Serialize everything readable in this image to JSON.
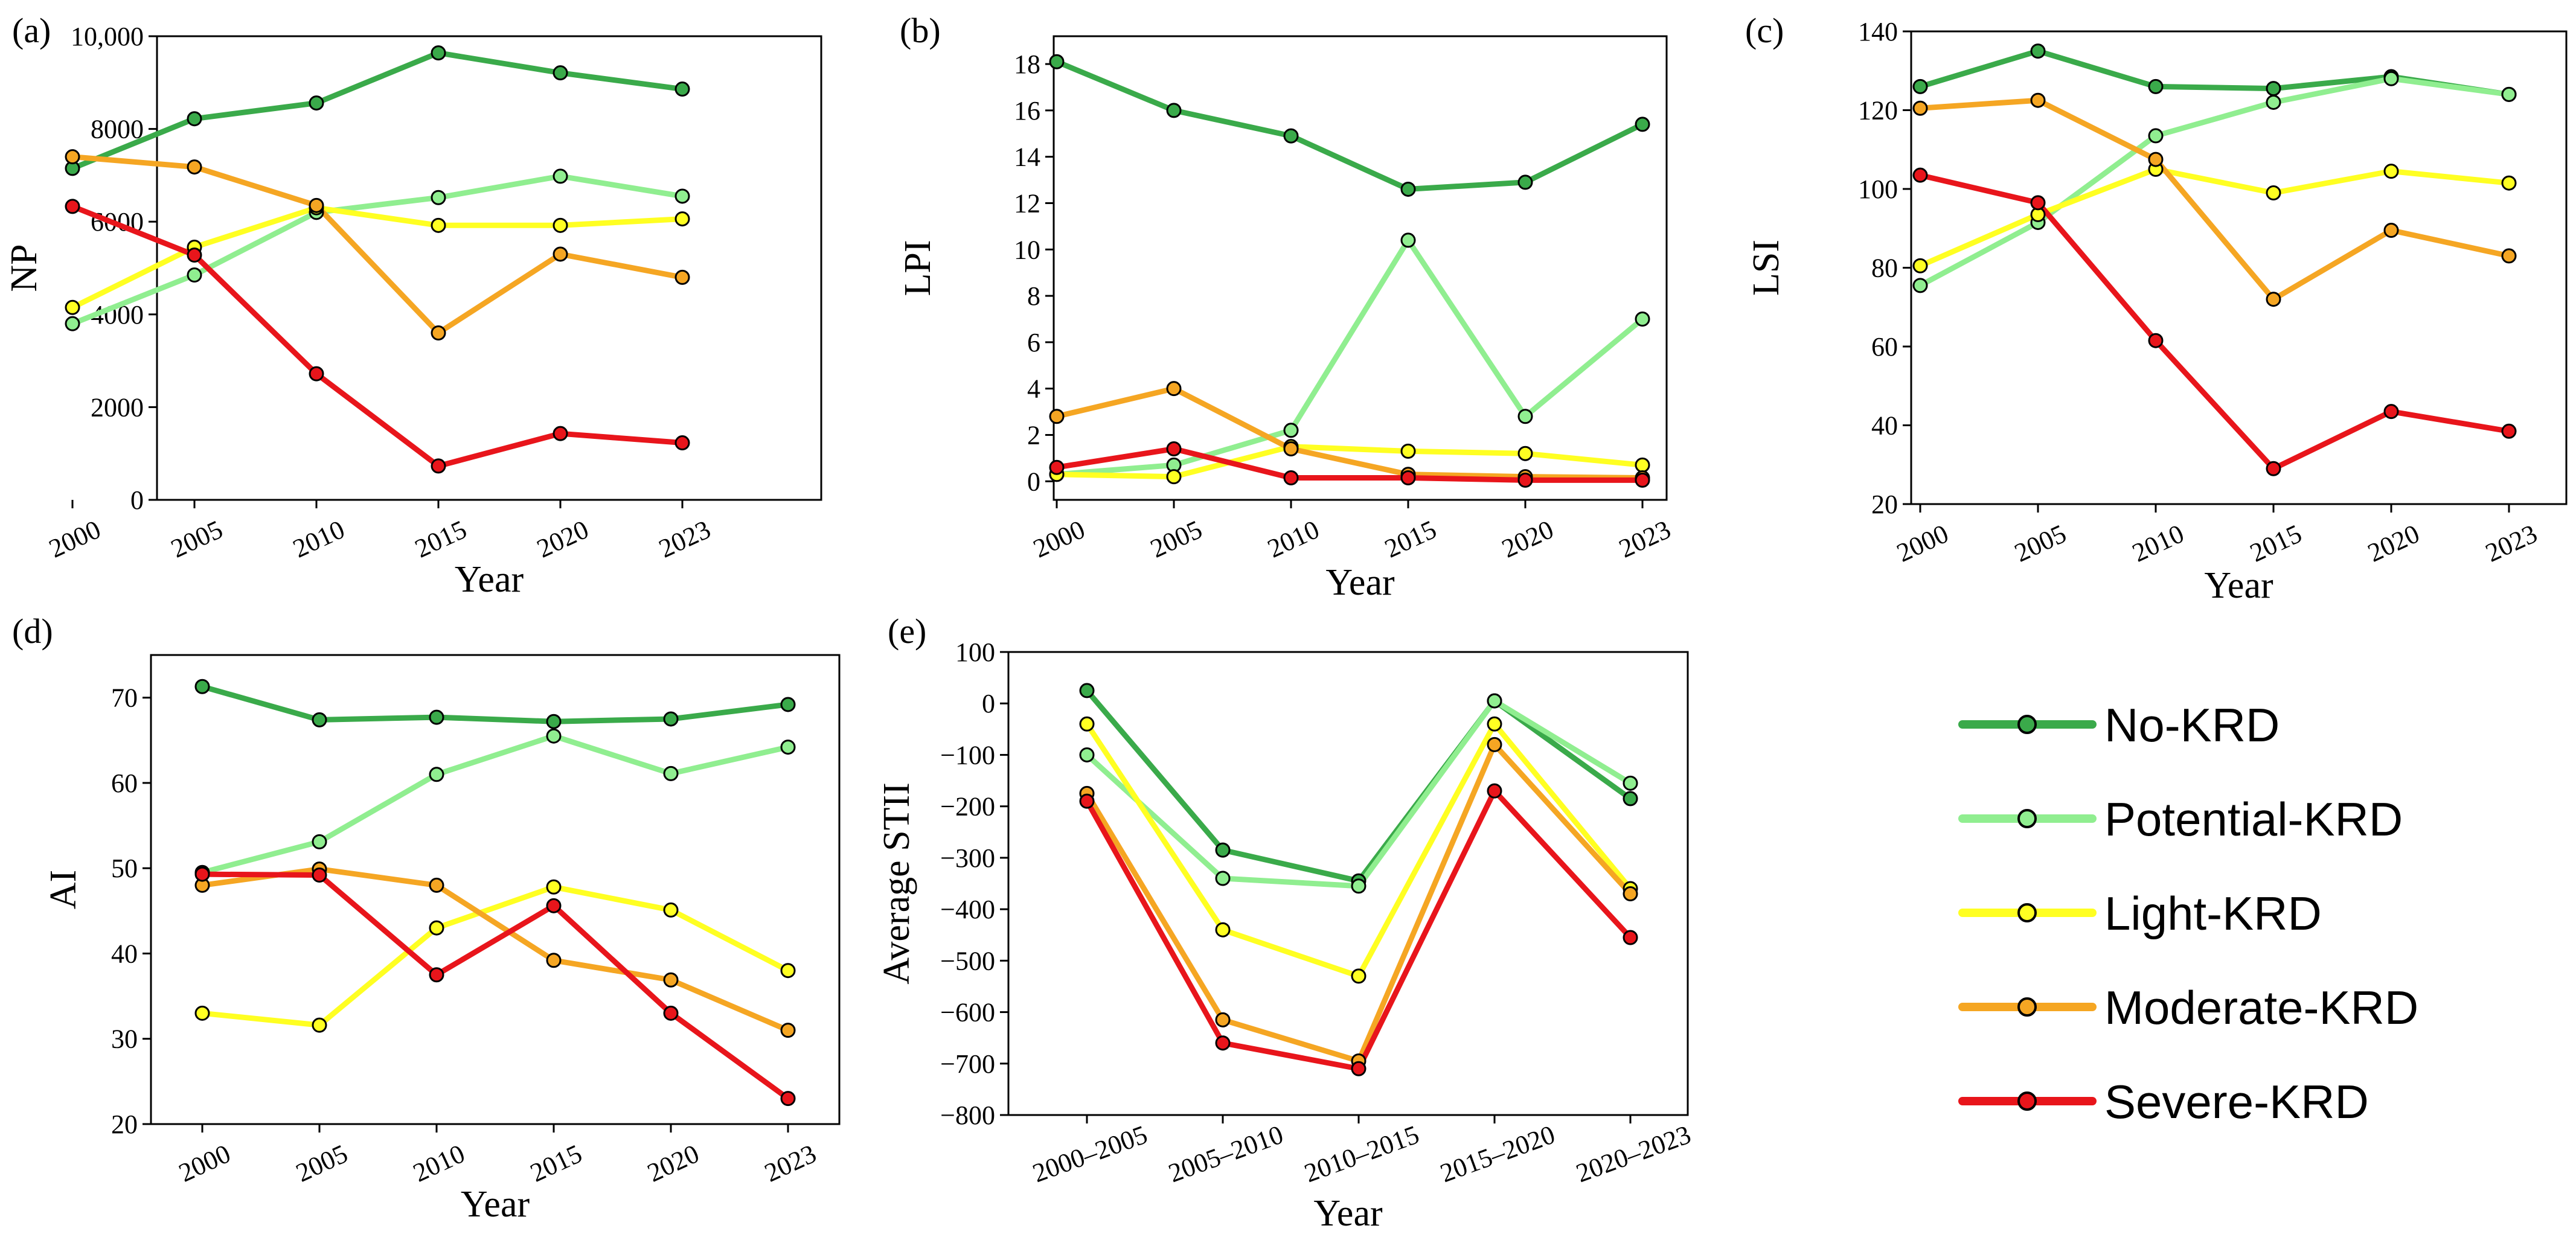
{
  "legend": [
    {
      "key": "no",
      "label": "No-KRD",
      "color": "#3aaa4a"
    },
    {
      "key": "potential",
      "label": "Potential-KRD",
      "color": "#90ee90"
    },
    {
      "key": "light",
      "label": "Light-KRD",
      "color": "#ffff22"
    },
    {
      "key": "moderate",
      "label": "Moderate-KRD",
      "color": "#f5a623"
    },
    {
      "key": "severe",
      "label": "Severe-KRD",
      "color": "#e8151b"
    }
  ],
  "chart_data": [
    {
      "id": "a",
      "panel_label": "(a)",
      "type": "line",
      "x": [
        "2000",
        "2005",
        "2010",
        "2015",
        "2020",
        "2023"
      ],
      "xlabel": "Year",
      "ylabel": "NP",
      "ylim": [
        0,
        10000
      ],
      "yticks": [
        0,
        2000,
        4000,
        6000,
        8000,
        10000
      ],
      "ytick_labels": [
        "0",
        "2000",
        "4000",
        "6000",
        "8000",
        "10,000"
      ],
      "series": [
        {
          "key": "no",
          "name": "No-KRD",
          "values": [
            7150,
            8220,
            8560,
            9640,
            9210,
            8860
          ]
        },
        {
          "key": "potential",
          "name": "Potential-KRD",
          "values": [
            3800,
            4850,
            6200,
            6520,
            6980,
            6550
          ]
        },
        {
          "key": "light",
          "name": "Light-KRD",
          "values": [
            4150,
            5450,
            6300,
            5920,
            5920,
            6060
          ]
        },
        {
          "key": "moderate",
          "name": "Moderate-KRD",
          "values": [
            7400,
            7180,
            6350,
            3600,
            5300,
            4800
          ]
        },
        {
          "key": "severe",
          "name": "Severe-KRD",
          "values": [
            6330,
            5280,
            2720,
            730,
            1430,
            1230
          ]
        }
      ]
    },
    {
      "id": "b",
      "panel_label": "(b)",
      "type": "line",
      "x": [
        "2000",
        "2005",
        "2010",
        "2015",
        "2020",
        "2023"
      ],
      "xlabel": "Year",
      "ylabel": "LPI",
      "ylim": [
        -0.8,
        19.2
      ],
      "yticks": [
        0,
        2,
        4,
        6,
        8,
        10,
        12,
        14,
        16,
        18
      ],
      "ytick_labels": [
        "0",
        "2",
        "4",
        "6",
        "8",
        "10",
        "12",
        "14",
        "16",
        "18"
      ],
      "series": [
        {
          "key": "no",
          "name": "No-KRD",
          "values": [
            18.1,
            16.0,
            14.9,
            12.6,
            12.9,
            15.4
          ]
        },
        {
          "key": "potential",
          "name": "Potential-KRD",
          "values": [
            0.3,
            0.7,
            2.2,
            10.4,
            2.8,
            7.0
          ]
        },
        {
          "key": "light",
          "name": "Light-KRD",
          "values": [
            0.3,
            0.2,
            1.5,
            1.3,
            1.2,
            0.7
          ]
        },
        {
          "key": "moderate",
          "name": "Moderate-KRD",
          "values": [
            2.8,
            4.0,
            1.4,
            0.3,
            0.2,
            0.15
          ]
        },
        {
          "key": "severe",
          "name": "Severe-KRD",
          "values": [
            0.6,
            1.4,
            0.15,
            0.15,
            0.05,
            0.05
          ]
        }
      ]
    },
    {
      "id": "c",
      "panel_label": "(c)",
      "type": "line",
      "x": [
        "2000",
        "2005",
        "2010",
        "2015",
        "2020",
        "2023"
      ],
      "xlabel": "Year",
      "ylabel": "LSI",
      "ylim": [
        20,
        140
      ],
      "yticks": [
        20,
        40,
        60,
        80,
        100,
        120,
        140
      ],
      "ytick_labels": [
        "20",
        "40",
        "60",
        "80",
        "100",
        "120",
        "140"
      ],
      "series": [
        {
          "key": "no",
          "name": "No-KRD",
          "values": [
            126,
            135,
            126,
            125.5,
            128.5,
            124
          ]
        },
        {
          "key": "potential",
          "name": "Potential-KRD",
          "values": [
            75.5,
            91.5,
            113.5,
            122,
            128,
            124
          ]
        },
        {
          "key": "light",
          "name": "Light-KRD",
          "values": [
            80.5,
            93.5,
            105,
            99,
            104.5,
            101.5
          ]
        },
        {
          "key": "moderate",
          "name": "Moderate-KRD",
          "values": [
            120.5,
            122.5,
            107.5,
            72,
            89.5,
            83
          ]
        },
        {
          "key": "severe",
          "name": "Severe-KRD",
          "values": [
            103.5,
            96.5,
            61.5,
            29,
            43.5,
            38.5
          ]
        }
      ]
    },
    {
      "id": "d",
      "panel_label": "(d)",
      "type": "line",
      "x": [
        "2000",
        "2005",
        "2010",
        "2015",
        "2020",
        "2023"
      ],
      "xlabel": "Year",
      "ylabel": "AI",
      "ylim": [
        20,
        75
      ],
      "yticks": [
        20,
        30,
        40,
        50,
        60,
        70
      ],
      "ytick_labels": [
        "20",
        "30",
        "40",
        "50",
        "60",
        "70"
      ],
      "series": [
        {
          "key": "no",
          "name": "No-KRD",
          "values": [
            71.3,
            67.4,
            67.7,
            67.2,
            67.5,
            69.2
          ]
        },
        {
          "key": "potential",
          "name": "Potential-KRD",
          "values": [
            49.5,
            53.1,
            61.0,
            65.5,
            61.1,
            64.2
          ]
        },
        {
          "key": "light",
          "name": "Light-KRD",
          "values": [
            33.0,
            31.6,
            43.0,
            47.8,
            45.1,
            38.0
          ]
        },
        {
          "key": "moderate",
          "name": "Moderate-KRD",
          "values": [
            48.0,
            49.9,
            48.0,
            39.2,
            36.9,
            31.0
          ]
        },
        {
          "key": "severe",
          "name": "Severe-KRD",
          "values": [
            49.3,
            49.2,
            37.5,
            45.6,
            33.0,
            23.0
          ]
        }
      ]
    },
    {
      "id": "e",
      "panel_label": "(e)",
      "type": "line",
      "x": [
        "2000–2005",
        "2005–2010",
        "2010–2015",
        "2015–2020",
        "2020–2023"
      ],
      "xlabel": "Year",
      "ylabel": "Average STII",
      "ylim": [
        -800,
        100
      ],
      "yticks": [
        -800,
        -700,
        -600,
        -500,
        -400,
        -300,
        -200,
        -100,
        0,
        100
      ],
      "ytick_labels": [
        "−800",
        "−700",
        "−600",
        "−500",
        "−400",
        "−300",
        "−200",
        "−100",
        "0",
        "100"
      ],
      "series": [
        {
          "key": "no",
          "name": "No-KRD",
          "values": [
            25,
            -285,
            -345,
            5,
            -185
          ]
        },
        {
          "key": "potential",
          "name": "Potential-KRD",
          "values": [
            -100,
            -340,
            -355,
            5,
            -155
          ]
        },
        {
          "key": "light",
          "name": "Light-KRD",
          "values": [
            -40,
            -440,
            -530,
            -40,
            -360
          ]
        },
        {
          "key": "moderate",
          "name": "Moderate-KRD",
          "values": [
            -175,
            -615,
            -695,
            -80,
            -370
          ]
        },
        {
          "key": "severe",
          "name": "Severe-KRD",
          "values": [
            -190,
            -660,
            -710,
            -170,
            -455
          ]
        }
      ]
    }
  ]
}
